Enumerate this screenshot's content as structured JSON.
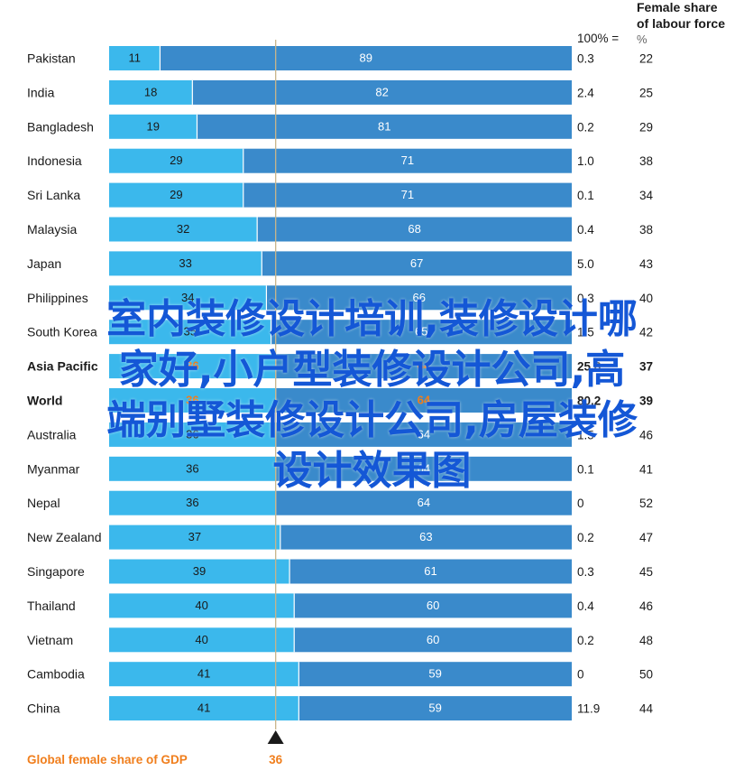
{
  "chart_data": {
    "type": "bar",
    "layout": "stacked-horizontal-100",
    "header": {
      "share_of_100_label": "100% =",
      "labour_col_title_line1": "Female share",
      "labour_col_title_line2": "of labour force",
      "labour_col_unit": "%"
    },
    "categories": [
      "Pakistan",
      "India",
      "Bangladesh",
      "Indonesia",
      "Sri Lanka",
      "Malaysia",
      "Japan",
      "Philippines",
      "South Korea",
      "Asia Pacific",
      "World",
      "Australia",
      "Myanmar",
      "Nepal",
      "New Zealand",
      "Singapore",
      "Thailand",
      "Vietnam",
      "Cambodia",
      "China"
    ],
    "series": [
      {
        "values": [
          11,
          18,
          19,
          29,
          29,
          32,
          33,
          34,
          35,
          36,
          36,
          36,
          36,
          36,
          37,
          39,
          40,
          40,
          41,
          41
        ]
      },
      {
        "values": [
          89,
          82,
          81,
          71,
          71,
          68,
          67,
          66,
          65,
          64,
          64,
          64,
          64,
          64,
          63,
          61,
          60,
          60,
          59,
          59
        ]
      }
    ],
    "gdp_100_pct_values": [
      "0.3",
      "2.4",
      "0.2",
      "1.0",
      "0.1",
      "0.4",
      "5.0",
      "0.3",
      "1.5",
      "25.8",
      "80.2",
      "1.5",
      "0.1",
      "0",
      "0.2",
      "0.3",
      "0.4",
      "0.2",
      "0",
      "11.9"
    ],
    "labour_force_female_share": [
      "22",
      "25",
      "29",
      "38",
      "34",
      "38",
      "43",
      "40",
      "42",
      "37",
      "39",
      "46",
      "41",
      "52",
      "47",
      "45",
      "46",
      "48",
      "50",
      "44"
    ],
    "highlighted_rows": [
      "Asia Pacific",
      "World"
    ],
    "reference_marker_label": "Global female share of GDP",
    "reference_marker_value": 36,
    "xlim": [
      0,
      100
    ],
    "colors": {
      "female_share": "#3bb8ec",
      "male_share": "#3a8acb",
      "highlight": "#f07e1c",
      "reference_line": "#c8b58a"
    }
  },
  "overlay": {
    "lines": [
      "室内装修设计培训,装修设计哪",
      "家好,小户型装修设计公司,高",
      "端别墅装修设计公司,房屋装修",
      "设计效果图"
    ]
  }
}
